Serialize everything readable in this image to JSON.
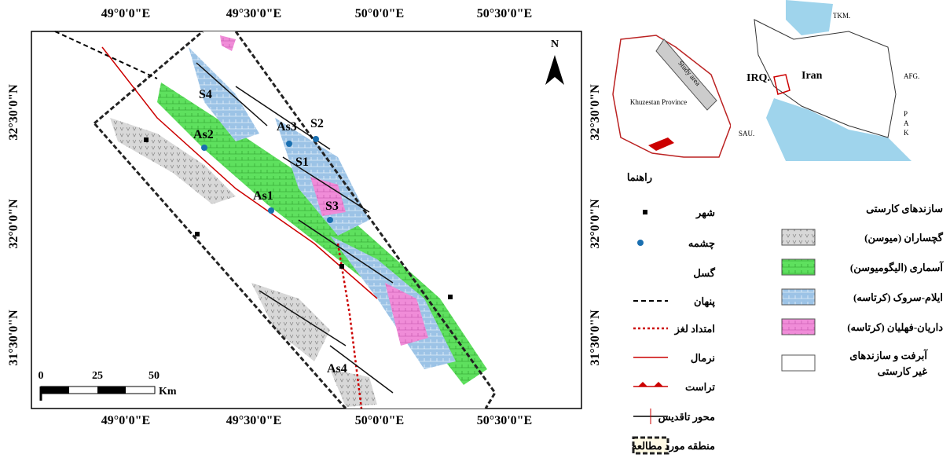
{
  "map": {
    "lon_top": [
      "49°0'0\"E",
      "49°30'0\"E",
      "50°0'0\"E",
      "50°30'0\"E"
    ],
    "lon_bottom": [
      "49°0'0\"E",
      "49°30'0\"E",
      "50°0'0\"E",
      "50°30'0\"E"
    ],
    "lat_left": [
      "32°30'0\"N",
      "32°0'0\"N",
      "31°30'0\"N"
    ],
    "lat_right": [
      "32°30'0\"N",
      "32°0'0\"N",
      "31°30'0\"N"
    ],
    "sites": [
      "S4",
      "As2",
      "As3",
      "S2",
      "S1",
      "As1",
      "S3",
      "As4"
    ],
    "north": "N",
    "scale": [
      "0",
      "25",
      "50",
      "Km"
    ]
  },
  "inset": {
    "study_area": "Study area",
    "province": "Khuzestan Province",
    "tkm": "TKM.",
    "iran": "Iran",
    "irq": "IRQ.",
    "afg": "AFG.",
    "sau": "SAU.",
    "pak": [
      "P",
      "A",
      "K"
    ]
  },
  "legend": {
    "title": "راهنما",
    "left": [
      "شهر",
      "چشمه",
      "گسل",
      "پنهان",
      "امتداد لغز",
      "نرمال",
      "تراست",
      "محور تاقدیس",
      "منطقه مورد مطالعه"
    ],
    "right_title": "سازندهای کارستی",
    "right": [
      "گچساران (میوسن)",
      "آسماری (الیگومیوسن)",
      "ایلام-سروک (کرتاسه)",
      "داریان-فهلیان (کرتاسه)",
      "آبرفت و سازندهای",
      "غیر کارستی"
    ]
  }
}
